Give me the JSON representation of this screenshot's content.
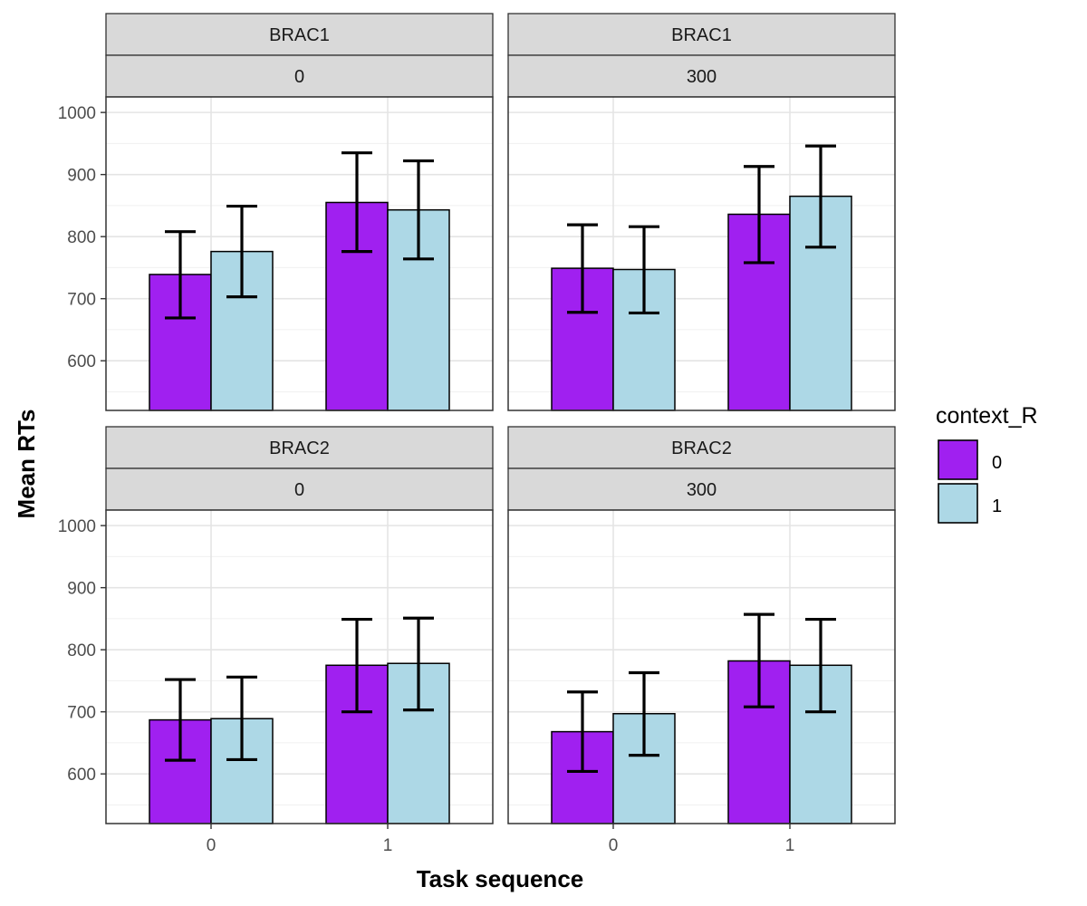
{
  "chart_data": {
    "type": "bar",
    "facet_rows": [
      "BRAC1",
      "BRAC2"
    ],
    "facet_cols": [
      "0",
      "300"
    ],
    "categories": [
      "0",
      "1"
    ],
    "xlabel": "Task sequence",
    "ylabel": "Mean RTs",
    "yticks": [
      600,
      700,
      800,
      900,
      1000
    ],
    "ylim": [
      520,
      1025
    ],
    "grid": true,
    "legend": {
      "title": "context_R",
      "placement": "right",
      "entries": [
        {
          "label": "0",
          "color": "#A020F0"
        },
        {
          "label": "1",
          "color": "#ADD8E6"
        }
      ]
    },
    "panels": [
      {
        "row": "BRAC1",
        "col": "0",
        "series": [
          {
            "name": "0",
            "values": [
              739,
              855
            ],
            "err_low": [
              669,
              776
            ],
            "err_high": [
              808,
              935
            ]
          },
          {
            "name": "1",
            "values": [
              776,
              843
            ],
            "err_low": [
              703,
              764
            ],
            "err_high": [
              849,
              922
            ]
          }
        ]
      },
      {
        "row": "BRAC1",
        "col": "300",
        "series": [
          {
            "name": "0",
            "values": [
              749,
              836
            ],
            "err_low": [
              678,
              758
            ],
            "err_high": [
              819,
              913
            ]
          },
          {
            "name": "1",
            "values": [
              747,
              865
            ],
            "err_low": [
              677,
              783
            ],
            "err_high": [
              816,
              946
            ]
          }
        ]
      },
      {
        "row": "BRAC2",
        "col": "0",
        "series": [
          {
            "name": "0",
            "values": [
              687,
              775
            ],
            "err_low": [
              622,
              700
            ],
            "err_high": [
              752,
              849
            ]
          },
          {
            "name": "1",
            "values": [
              689,
              778
            ],
            "err_low": [
              623,
              703
            ],
            "err_high": [
              756,
              851
            ]
          }
        ]
      },
      {
        "row": "BRAC2",
        "col": "300",
        "series": [
          {
            "name": "0",
            "values": [
              668,
              782
            ],
            "err_low": [
              604,
              708
            ],
            "err_high": [
              732,
              857
            ]
          },
          {
            "name": "1",
            "values": [
              697,
              775
            ],
            "err_low": [
              630,
              700
            ],
            "err_high": [
              763,
              849
            ]
          }
        ]
      }
    ]
  }
}
